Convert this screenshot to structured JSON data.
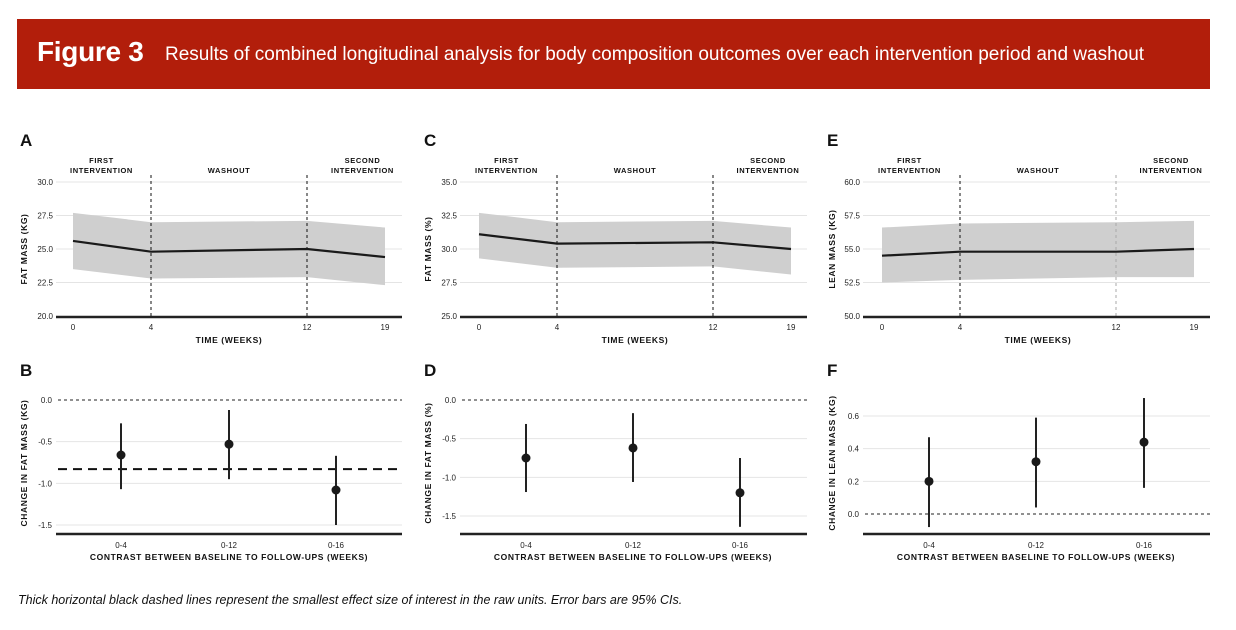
{
  "header": {
    "figure_label": "Figure 3",
    "title": "Results of combined longitudinal analysis for body composition outcomes over each intervention period and washout",
    "color": "#B21E0B"
  },
  "caption": "Thick horizontal black dashed lines represent the smallest effect size of interest in the raw units. Error bars are 95% CIs.",
  "chart_data": [
    {
      "panel": "A",
      "type": "line",
      "title": "",
      "xlabel": "TIME (WEEKS)",
      "ylabel": "FAT MASS (KG)",
      "x": [
        0,
        4,
        12,
        19
      ],
      "x_tick_labels": [
        "0",
        "4",
        "12",
        "19"
      ],
      "ylim": [
        20.0,
        30.0
      ],
      "y_ticks": [
        "20.0",
        "22.5",
        "25.0",
        "27.5",
        "30.0"
      ],
      "y_tick_values": [
        20.0,
        22.5,
        25.0,
        27.5,
        30.0
      ],
      "series": [
        {
          "name": "estimate",
          "values": [
            25.6,
            24.8,
            25.0,
            24.4
          ],
          "ci_upper": [
            27.7,
            27.0,
            27.1,
            26.6
          ],
          "ci_lower": [
            23.5,
            22.8,
            22.9,
            22.3
          ]
        }
      ],
      "phase_labels": [
        [
          "FIRST",
          "INTERVENTION"
        ],
        [
          "WASHOUT"
        ],
        [
          "SECOND",
          "INTERVENTION"
        ]
      ],
      "phase_boundaries": [
        4,
        12
      ],
      "grid": true
    },
    {
      "panel": "C",
      "type": "line",
      "title": "",
      "xlabel": "TIME (WEEKS)",
      "ylabel": "FAT MASS (%)",
      "x": [
        0,
        4,
        12,
        19
      ],
      "x_tick_labels": [
        "0",
        "4",
        "12",
        "19"
      ],
      "ylim": [
        25.0,
        35.0
      ],
      "y_ticks": [
        "25.0",
        "27.5",
        "30.0",
        "32.5",
        "35.0"
      ],
      "y_tick_values": [
        25.0,
        27.5,
        30.0,
        32.5,
        35.0
      ],
      "series": [
        {
          "name": "estimate",
          "values": [
            31.1,
            30.4,
            30.5,
            30.0
          ],
          "ci_upper": [
            32.7,
            32.0,
            32.1,
            31.6
          ],
          "ci_lower": [
            29.3,
            28.6,
            28.7,
            28.1
          ]
        }
      ],
      "phase_labels": [
        [
          "FIRST",
          "INTERVENTION"
        ],
        [
          "WASHOUT"
        ],
        [
          "SECOND",
          "INTERVENTION"
        ]
      ],
      "phase_boundaries": [
        4,
        12
      ],
      "grid": true
    },
    {
      "panel": "E",
      "type": "line",
      "title": "",
      "xlabel": "TIME (WEEKS)",
      "ylabel": "LEAN MASS (KG)",
      "x": [
        0,
        4,
        12,
        19
      ],
      "x_tick_labels": [
        "0",
        "4",
        "12",
        "19"
      ],
      "ylim": [
        50.0,
        60.0
      ],
      "y_ticks": [
        "50.0",
        "52.5",
        "55.0",
        "57.5",
        "60.0"
      ],
      "y_tick_values": [
        50.0,
        52.5,
        55.0,
        57.5,
        60.0
      ],
      "series": [
        {
          "name": "estimate",
          "values": [
            54.5,
            54.8,
            54.8,
            55.0
          ],
          "ci_upper": [
            56.6,
            56.9,
            57.0,
            57.1
          ],
          "ci_lower": [
            52.5,
            52.7,
            52.9,
            52.9
          ]
        }
      ],
      "phase_labels": [
        [
          "FIRST",
          "INTERVENTION"
        ],
        [
          "WASHOUT"
        ],
        [
          "SECOND",
          "INTERVENTION"
        ]
      ],
      "phase_boundaries": [
        4,
        12
      ],
      "grid": true
    },
    {
      "panel": "B",
      "type": "scatter",
      "title": "",
      "xlabel": "CONTRAST BETWEEN BASELINE TO FOLLOW-UPS (WEEKS)",
      "ylabel": "CHANGE IN FAT MASS (KG)",
      "categories": [
        "0-4",
        "0-12",
        "0-16"
      ],
      "values": [
        -0.66,
        -0.53,
        -1.08
      ],
      "ci_upper": [
        -0.28,
        -0.12,
        -0.67
      ],
      "ci_lower": [
        -1.07,
        -0.95,
        -1.5
      ],
      "ylim": [
        -1.61,
        0.0
      ],
      "y_ticks": [
        "-1.5",
        "-1.0",
        "-0.5",
        "0.0"
      ],
      "y_tick_values": [
        -1.5,
        -1.0,
        -0.5,
        0.0
      ],
      "reference_line": 0.0,
      "sesoi_line": -0.83,
      "grid": true
    },
    {
      "panel": "D",
      "type": "scatter",
      "title": "",
      "xlabel": "CONTRAST BETWEEN BASELINE TO FOLLOW-UPS (WEEKS)",
      "ylabel": "CHANGE IN FAT MASS (%)",
      "categories": [
        "0-4",
        "0-12",
        "0-16"
      ],
      "values": [
        -0.75,
        -0.62,
        -1.2
      ],
      "ci_upper": [
        -0.31,
        -0.17,
        -0.75
      ],
      "ci_lower": [
        -1.19,
        -1.06,
        -1.64
      ],
      "ylim": [
        -1.73,
        0.0
      ],
      "y_ticks": [
        "-1.5",
        "-1.0",
        "-0.5",
        "0.0"
      ],
      "y_tick_values": [
        -1.5,
        -1.0,
        -0.5,
        0.0
      ],
      "reference_line": 0.0,
      "sesoi_line": null,
      "grid": true
    },
    {
      "panel": "F",
      "type": "scatter",
      "title": "",
      "xlabel": "CONTRAST BETWEEN BASELINE TO FOLLOW-UPS (WEEKS)",
      "ylabel": "CHANGE IN LEAN MASS (KG)",
      "categories": [
        "0-4",
        "0-12",
        "0-16"
      ],
      "values": [
        0.2,
        0.32,
        0.44
      ],
      "ci_upper": [
        0.47,
        0.59,
        0.71
      ],
      "ci_lower": [
        -0.08,
        0.04,
        0.16
      ],
      "ylim": [
        -0.12,
        0.75
      ],
      "y_ticks": [
        "0.0",
        "0.2",
        "0.4",
        "0.6"
      ],
      "y_tick_values": [
        0.0,
        0.2,
        0.4,
        0.6
      ],
      "reference_line": 0.0,
      "sesoi_line": null,
      "grid": true
    }
  ]
}
